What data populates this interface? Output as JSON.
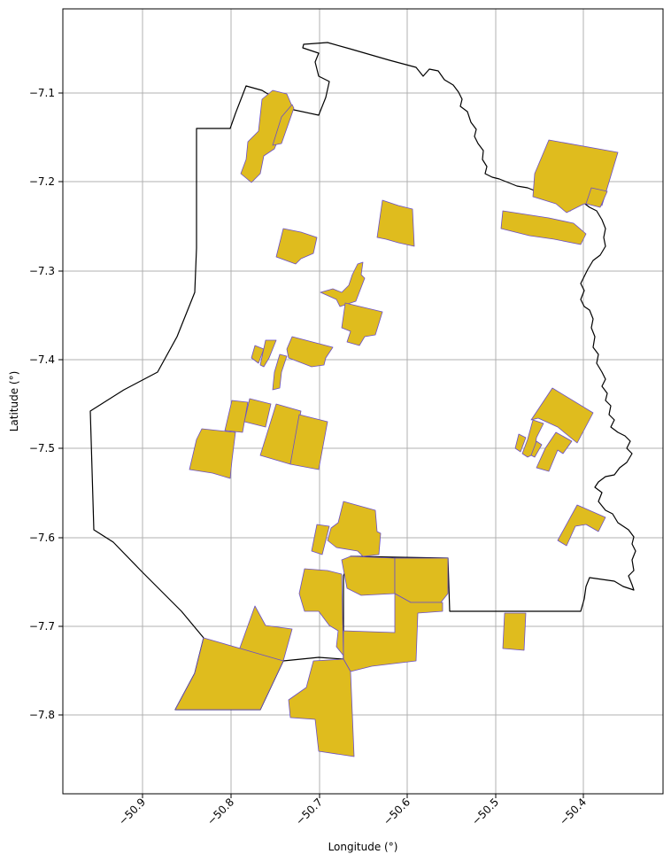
{
  "chart_data": {
    "type": "map",
    "xlabel": "Longitude (°)",
    "ylabel": "Latitude (°)",
    "xlim": [
      -50.99,
      -50.31
    ],
    "ylim": [
      -7.89,
      -7.005
    ],
    "grid": true,
    "xticks": [
      -50.9,
      -50.8,
      -50.7,
      -50.6,
      -50.5,
      -50.4
    ],
    "xtick_labels": [
      "−50.9",
      "−50.8",
      "−50.7",
      "−50.6",
      "−50.5",
      "−50.4"
    ],
    "yticks": [
      -7.1,
      -7.2,
      -7.3,
      -7.4,
      -7.5,
      -7.6,
      -7.7,
      -7.8
    ],
    "ytick_labels": [
      "−7.1",
      "−7.2",
      "−7.3",
      "−7.4",
      "−7.5",
      "−7.6",
      "−7.7",
      "−7.8"
    ],
    "colors": {
      "parcel_fill": "#DFBC1E",
      "parcel_edge": "#6a4fc8",
      "boundary": "#000000",
      "grid": "#b0b0b0"
    }
  }
}
